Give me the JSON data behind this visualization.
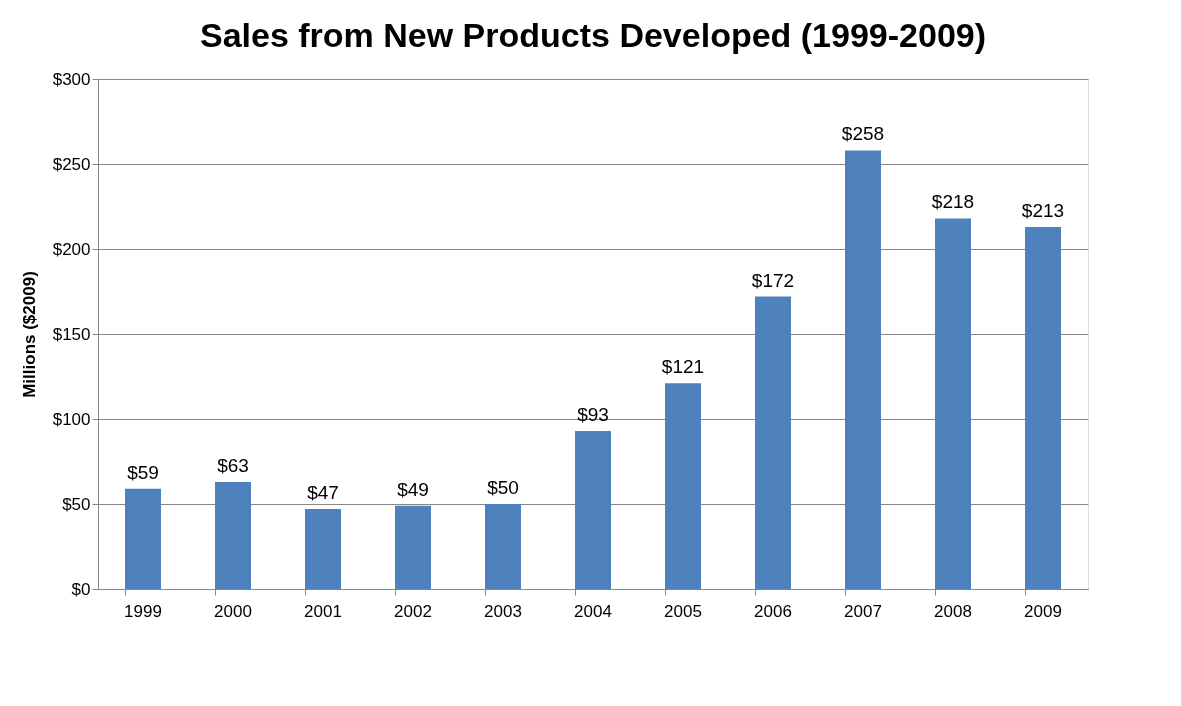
{
  "chart_data": {
    "type": "bar",
    "title": "Sales from New Products Developed (1999-2009)",
    "ylabel": "Millions ($2009)",
    "categories": [
      "1999",
      "2000",
      "2001",
      "2002",
      "2003",
      "2004",
      "2005",
      "2006",
      "2007",
      "2008",
      "2009"
    ],
    "values": [
      59,
      63,
      47,
      49,
      50,
      93,
      121,
      172,
      258,
      218,
      213
    ],
    "value_labels": [
      "$59",
      "$63",
      "$47",
      "$49",
      "$50",
      "$93",
      "$121",
      "$172",
      "$258",
      "$218",
      "$213"
    ],
    "color": "#4f81bd",
    "ylim": [
      0,
      300
    ],
    "yticks": [
      {
        "value": 0,
        "label": "$0"
      },
      {
        "value": 50,
        "label": "$50"
      },
      {
        "value": 100,
        "label": "$100"
      },
      {
        "value": 150,
        "label": "$150"
      },
      {
        "value": 200,
        "label": "$200"
      },
      {
        "value": 250,
        "label": "$250"
      },
      {
        "value": 300,
        "label": "$300"
      }
    ],
    "grid": "y"
  }
}
